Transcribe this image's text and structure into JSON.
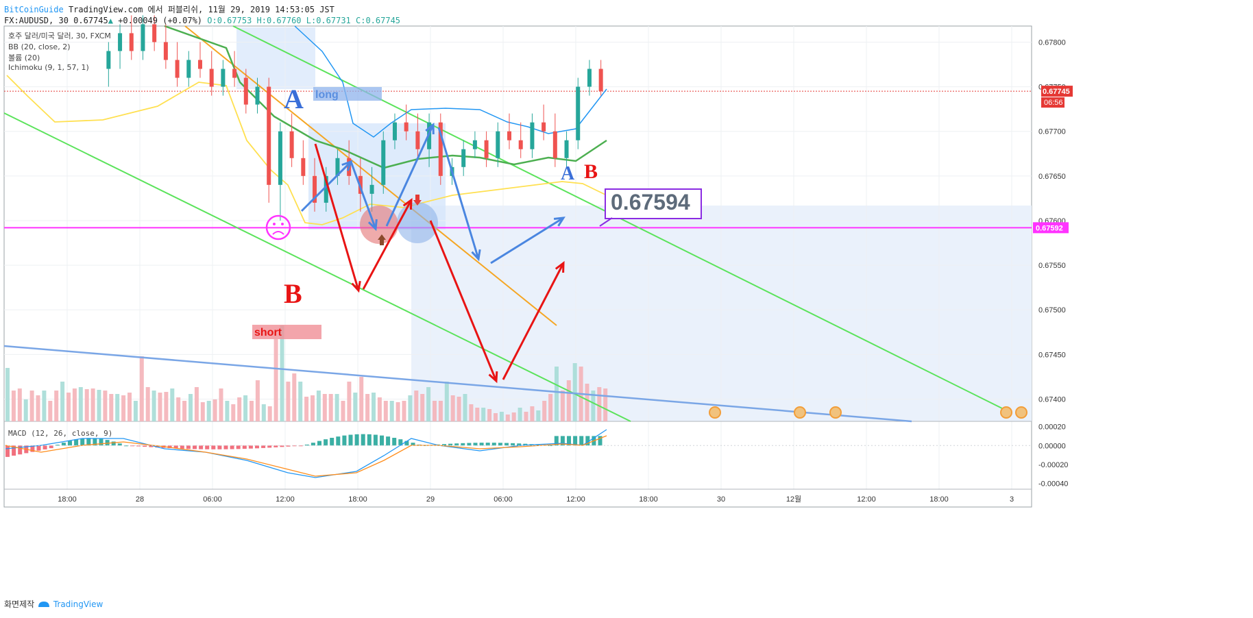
{
  "header": {
    "site": "BitCoinGuide",
    "published_text": "TradingView.com 에서 퍼블리쉬, 11월 29, 2019 14:53:05 JST",
    "symbol_line": "FX:AUDUSD, 30",
    "last": "0.67745",
    "change": "+0.00049 (+0.07%)",
    "ohlc": "O:0.67753 H:0.67760 L:0.67731 C:0.67745"
  },
  "legend": {
    "line1": "호주 달러/미국 달러, 30, FXCM",
    "line2": "BB (20, close, 2)",
    "line3": "볼륨 (20)",
    "line4": "Ichimoku (9, 1, 57, 1)"
  },
  "macd_label": "MACD (12, 26, close, 9)",
  "footer": {
    "text": "화면제작",
    "brand": "TradingView"
  },
  "chart_data": {
    "type": "candlestick",
    "symbol": "FX:AUDUSD",
    "interval": "30",
    "price_axis": {
      "ticks": [
        "0.67800",
        "0.67750",
        "0.67700",
        "0.67650",
        "0.67600",
        "0.67550",
        "0.67500",
        "0.67450",
        "0.67400"
      ],
      "range": [
        0.67375,
        0.67818
      ]
    },
    "macd_axis": {
      "ticks": [
        "0.00020",
        "0.00000",
        "-0.00020",
        "-0.00040"
      ],
      "range": [
        -0.00046,
        0.00024
      ]
    },
    "time_axis": [
      "18:00",
      "28",
      "12:00",
      "06:00",
      "12:00",
      "18:00",
      "29",
      "06:00",
      "12:00",
      "18:00",
      "30",
      "12월",
      "12:00",
      "18:00",
      "3"
    ],
    "current_price_label": "0.67745",
    "countdown_label": "06:56",
    "support_label": "0.67592",
    "callout_price": "0.67594",
    "annotations": {
      "A_long_letter": "A",
      "long_label": "long",
      "short_label": "short",
      "B_letter": "B",
      "A_small": "A",
      "B_small": "B"
    },
    "candles_approx": [
      [
        0.6777,
        0.678,
        0.6775,
        0.6779
      ],
      [
        0.6779,
        0.6782,
        0.6777,
        0.6781
      ],
      [
        0.6781,
        0.6783,
        0.6778,
        0.6779
      ],
      [
        0.6779,
        0.6783,
        0.6778,
        0.6782
      ],
      [
        0.6782,
        0.6783,
        0.6779,
        0.678
      ],
      [
        0.678,
        0.6782,
        0.6777,
        0.6778
      ],
      [
        0.6778,
        0.678,
        0.6775,
        0.6776
      ],
      [
        0.6776,
        0.6779,
        0.6775,
        0.6778
      ],
      [
        0.6778,
        0.678,
        0.6776,
        0.6777
      ],
      [
        0.6777,
        0.6779,
        0.6774,
        0.6775
      ],
      [
        0.6775,
        0.6778,
        0.6774,
        0.6777
      ],
      [
        0.6777,
        0.6779,
        0.6775,
        0.6776
      ],
      [
        0.6776,
        0.6777,
        0.6772,
        0.6773
      ],
      [
        0.6773,
        0.6776,
        0.6772,
        0.6775
      ],
      [
        0.6775,
        0.6776,
        0.6762,
        0.6764
      ],
      [
        0.6764,
        0.6771,
        0.676,
        0.677
      ],
      [
        0.677,
        0.6772,
        0.6766,
        0.6767
      ],
      [
        0.6767,
        0.6769,
        0.6764,
        0.6765
      ],
      [
        0.6765,
        0.6767,
        0.6761,
        0.6762
      ],
      [
        0.6762,
        0.6766,
        0.6761,
        0.6765
      ],
      [
        0.6765,
        0.6768,
        0.6764,
        0.6767
      ],
      [
        0.6767,
        0.6769,
        0.6764,
        0.6765
      ],
      [
        0.6765,
        0.6767,
        0.6761,
        0.6763
      ],
      [
        0.6763,
        0.6766,
        0.6761,
        0.6764
      ],
      [
        0.6764,
        0.677,
        0.6763,
        0.6769
      ],
      [
        0.6769,
        0.6772,
        0.6768,
        0.6771
      ],
      [
        0.6771,
        0.6773,
        0.6769,
        0.677
      ],
      [
        0.677,
        0.6772,
        0.6767,
        0.6768
      ],
      [
        0.6768,
        0.6772,
        0.6766,
        0.6771
      ],
      [
        0.6771,
        0.6772,
        0.6764,
        0.6765
      ],
      [
        0.6765,
        0.6767,
        0.6764,
        0.6766
      ],
      [
        0.6766,
        0.6769,
        0.6765,
        0.6768
      ],
      [
        0.6768,
        0.677,
        0.6767,
        0.6769
      ],
      [
        0.6769,
        0.677,
        0.6766,
        0.6767
      ],
      [
        0.6767,
        0.6771,
        0.6766,
        0.677
      ],
      [
        0.677,
        0.6772,
        0.6768,
        0.6769
      ],
      [
        0.6769,
        0.6771,
        0.6767,
        0.6768
      ],
      [
        0.6768,
        0.6772,
        0.6767,
        0.6771
      ],
      [
        0.6771,
        0.6773,
        0.6769,
        0.677
      ],
      [
        0.677,
        0.6772,
        0.6766,
        0.6767
      ],
      [
        0.6767,
        0.677,
        0.6766,
        0.6769
      ],
      [
        0.6769,
        0.6776,
        0.6768,
        0.6775
      ],
      [
        0.6775,
        0.6778,
        0.6774,
        0.6777
      ],
      [
        0.6777,
        0.6778,
        0.6774,
        0.67745
      ]
    ]
  }
}
